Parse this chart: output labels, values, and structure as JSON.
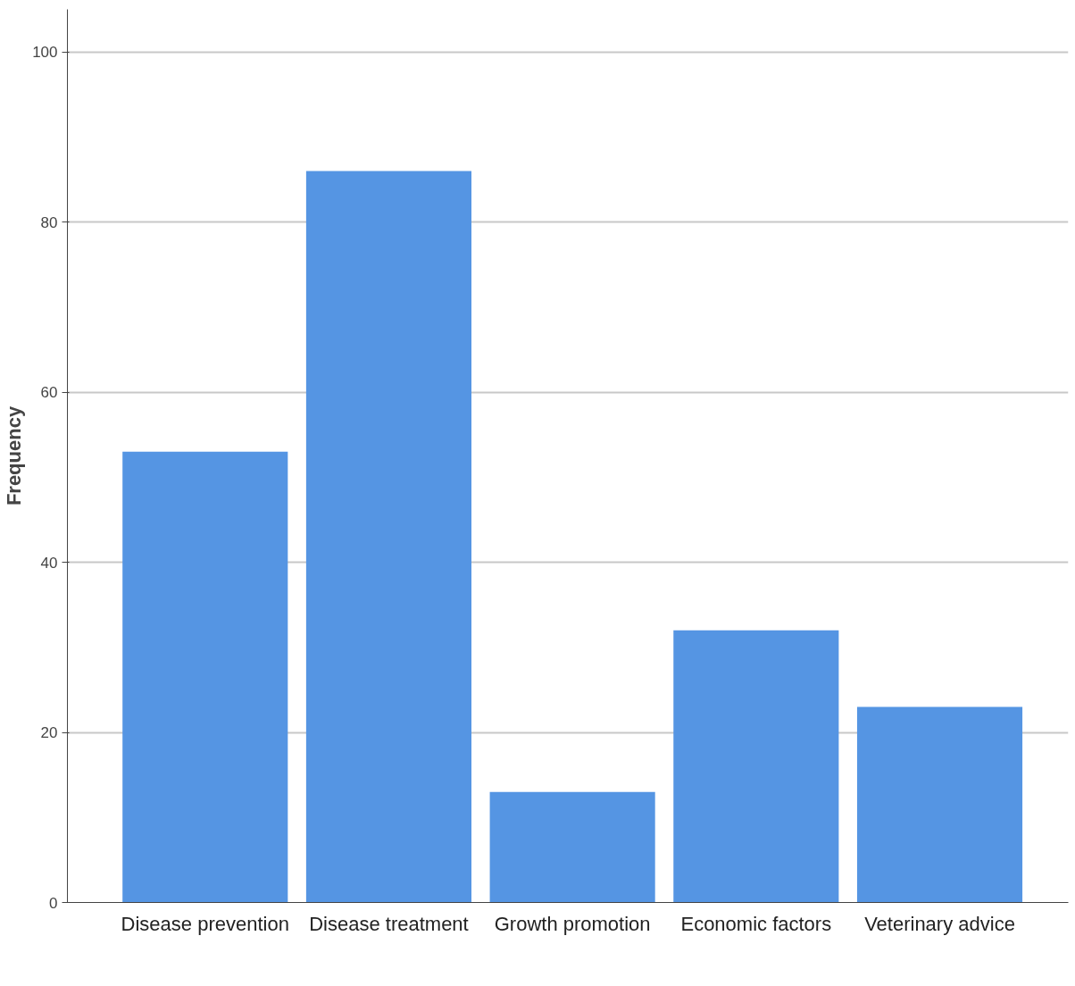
{
  "chart_data": {
    "type": "bar",
    "ylabel": "Frequency",
    "categories": [
      "Disease prevention",
      "Disease treatment",
      "Growth promotion",
      "Economic factors",
      "Veterinary advice"
    ],
    "values": [
      53,
      86,
      13,
      32,
      23
    ],
    "color": "#5595e3",
    "ylim": [
      0,
      105
    ],
    "yticks": [
      0,
      20,
      40,
      60,
      80,
      100
    ],
    "grid": "y"
  }
}
